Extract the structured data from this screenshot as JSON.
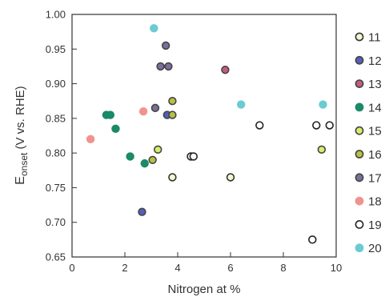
{
  "chart_data": {
    "type": "scatter",
    "title": "",
    "xlabel": "Nitrogen at %",
    "ylabel_main": "E",
    "ylabel_sub": "onset",
    "ylabel_rest": " (V vs. RHE)",
    "xlim": [
      0,
      10
    ],
    "ylim": [
      0.65,
      1.0
    ],
    "x_ticks": [
      0,
      2,
      4,
      6,
      8,
      10
    ],
    "y_ticks": [
      "0.65",
      "0.70",
      "0.75",
      "0.80",
      "0.85",
      "0.90",
      "0.95",
      "1.00"
    ],
    "grid": false,
    "legend_position": "right",
    "series": [
      {
        "name": "11",
        "fill": "#f4f7d0",
        "stroke": "#333333",
        "points": [
          [
            6.0,
            0.765
          ],
          [
            3.8,
            0.765
          ]
        ]
      },
      {
        "name": "12",
        "fill": "#5560b8",
        "stroke": "#444444",
        "points": [
          [
            2.65,
            0.715
          ],
          [
            3.6,
            0.855
          ]
        ]
      },
      {
        "name": "13",
        "fill": "#c45c7d",
        "stroke": "#444444",
        "points": [
          [
            5.8,
            0.92
          ]
        ]
      },
      {
        "name": "14",
        "fill": "#1a8a68",
        "stroke": "#1a8a68",
        "points": [
          [
            1.3,
            0.855
          ],
          [
            1.45,
            0.855
          ],
          [
            1.65,
            0.835
          ],
          [
            2.2,
            0.795
          ],
          [
            2.75,
            0.785
          ]
        ]
      },
      {
        "name": "15",
        "fill": "#d4ee6a",
        "stroke": "#444444",
        "points": [
          [
            3.25,
            0.805
          ],
          [
            9.45,
            0.805
          ]
        ]
      },
      {
        "name": "16",
        "fill": "#b8c044",
        "stroke": "#444444",
        "points": [
          [
            3.8,
            0.875
          ],
          [
            3.8,
            0.855
          ],
          [
            3.05,
            0.79
          ]
        ]
      },
      {
        "name": "17",
        "fill": "#7c6e9a",
        "stroke": "#444444",
        "points": [
          [
            3.55,
            0.955
          ],
          [
            3.35,
            0.925
          ],
          [
            3.65,
            0.925
          ],
          [
            3.15,
            0.865
          ]
        ]
      },
      {
        "name": "18",
        "fill": "#f0938e",
        "stroke": "#f0938e",
        "points": [
          [
            0.7,
            0.82
          ],
          [
            2.7,
            0.86
          ]
        ]
      },
      {
        "name": "19",
        "fill": "#ffffff",
        "stroke": "#222222",
        "points": [
          [
            4.5,
            0.795
          ],
          [
            4.6,
            0.795
          ],
          [
            7.1,
            0.84
          ],
          [
            9.25,
            0.84
          ],
          [
            9.75,
            0.84
          ],
          [
            9.1,
            0.675
          ]
        ]
      },
      {
        "name": "20",
        "fill": "#6ccbd2",
        "stroke": "#6ccbd2",
        "points": [
          [
            3.1,
            0.98
          ],
          [
            6.4,
            0.87
          ],
          [
            9.5,
            0.87
          ]
        ]
      }
    ]
  }
}
